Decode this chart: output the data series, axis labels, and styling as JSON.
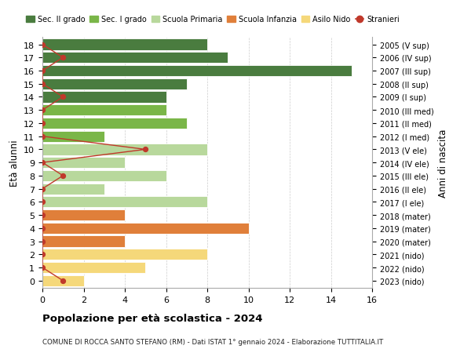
{
  "ages": [
    18,
    17,
    16,
    15,
    14,
    13,
    12,
    11,
    10,
    9,
    8,
    7,
    6,
    5,
    4,
    3,
    2,
    1,
    0
  ],
  "right_labels": [
    "2005 (V sup)",
    "2006 (IV sup)",
    "2007 (III sup)",
    "2008 (II sup)",
    "2009 (I sup)",
    "2010 (III med)",
    "2011 (II med)",
    "2012 (I med)",
    "2013 (V ele)",
    "2014 (IV ele)",
    "2015 (III ele)",
    "2016 (II ele)",
    "2017 (I ele)",
    "2018 (mater)",
    "2019 (mater)",
    "2020 (mater)",
    "2021 (nido)",
    "2022 (nido)",
    "2023 (nido)"
  ],
  "bar_values": [
    8,
    9,
    15,
    7,
    6,
    6,
    7,
    3,
    8,
    4,
    6,
    3,
    8,
    4,
    10,
    4,
    8,
    5,
    2
  ],
  "bar_colors": [
    "#4a7c3f",
    "#4a7c3f",
    "#4a7c3f",
    "#4a7c3f",
    "#4a7c3f",
    "#7ab648",
    "#7ab648",
    "#7ab648",
    "#b8d89c",
    "#b8d89c",
    "#b8d89c",
    "#b8d89c",
    "#b8d89c",
    "#e07f3a",
    "#e07f3a",
    "#e07f3a",
    "#f5d87a",
    "#f5d87a",
    "#f5d87a"
  ],
  "stranieri_values": [
    0,
    1,
    0,
    0,
    1,
    0,
    0,
    0,
    5,
    0,
    1,
    0,
    0,
    0,
    0,
    0,
    0,
    0,
    1
  ],
  "stranieri_ages": [
    18,
    17,
    16,
    15,
    14,
    13,
    12,
    11,
    10,
    9,
    8,
    7,
    6,
    5,
    4,
    3,
    2,
    1,
    0
  ],
  "legend_labels": [
    "Sec. II grado",
    "Sec. I grado",
    "Scuola Primaria",
    "Scuola Infanzia",
    "Asilo Nido",
    "Stranieri"
  ],
  "legend_colors": [
    "#4a7c3f",
    "#7ab648",
    "#b8d89c",
    "#e07f3a",
    "#f5d87a",
    "#c0392b"
  ],
  "stranieri_color": "#c0392b",
  "ylabel_left": "Età alunni",
  "ylabel_right": "Anni di nascita",
  "title": "Popolazione per età scolastica - 2024",
  "subtitle": "COMUNE DI ROCCA SANTO STEFANO (RM) - Dati ISTAT 1° gennaio 2024 - Elaborazione TUTTITALIA.IT",
  "xlim": [
    0,
    16
  ],
  "xticks": [
    0,
    2,
    4,
    6,
    8,
    10,
    12,
    14,
    16
  ],
  "bg_color": "#ffffff",
  "grid_color": "#cccccc"
}
